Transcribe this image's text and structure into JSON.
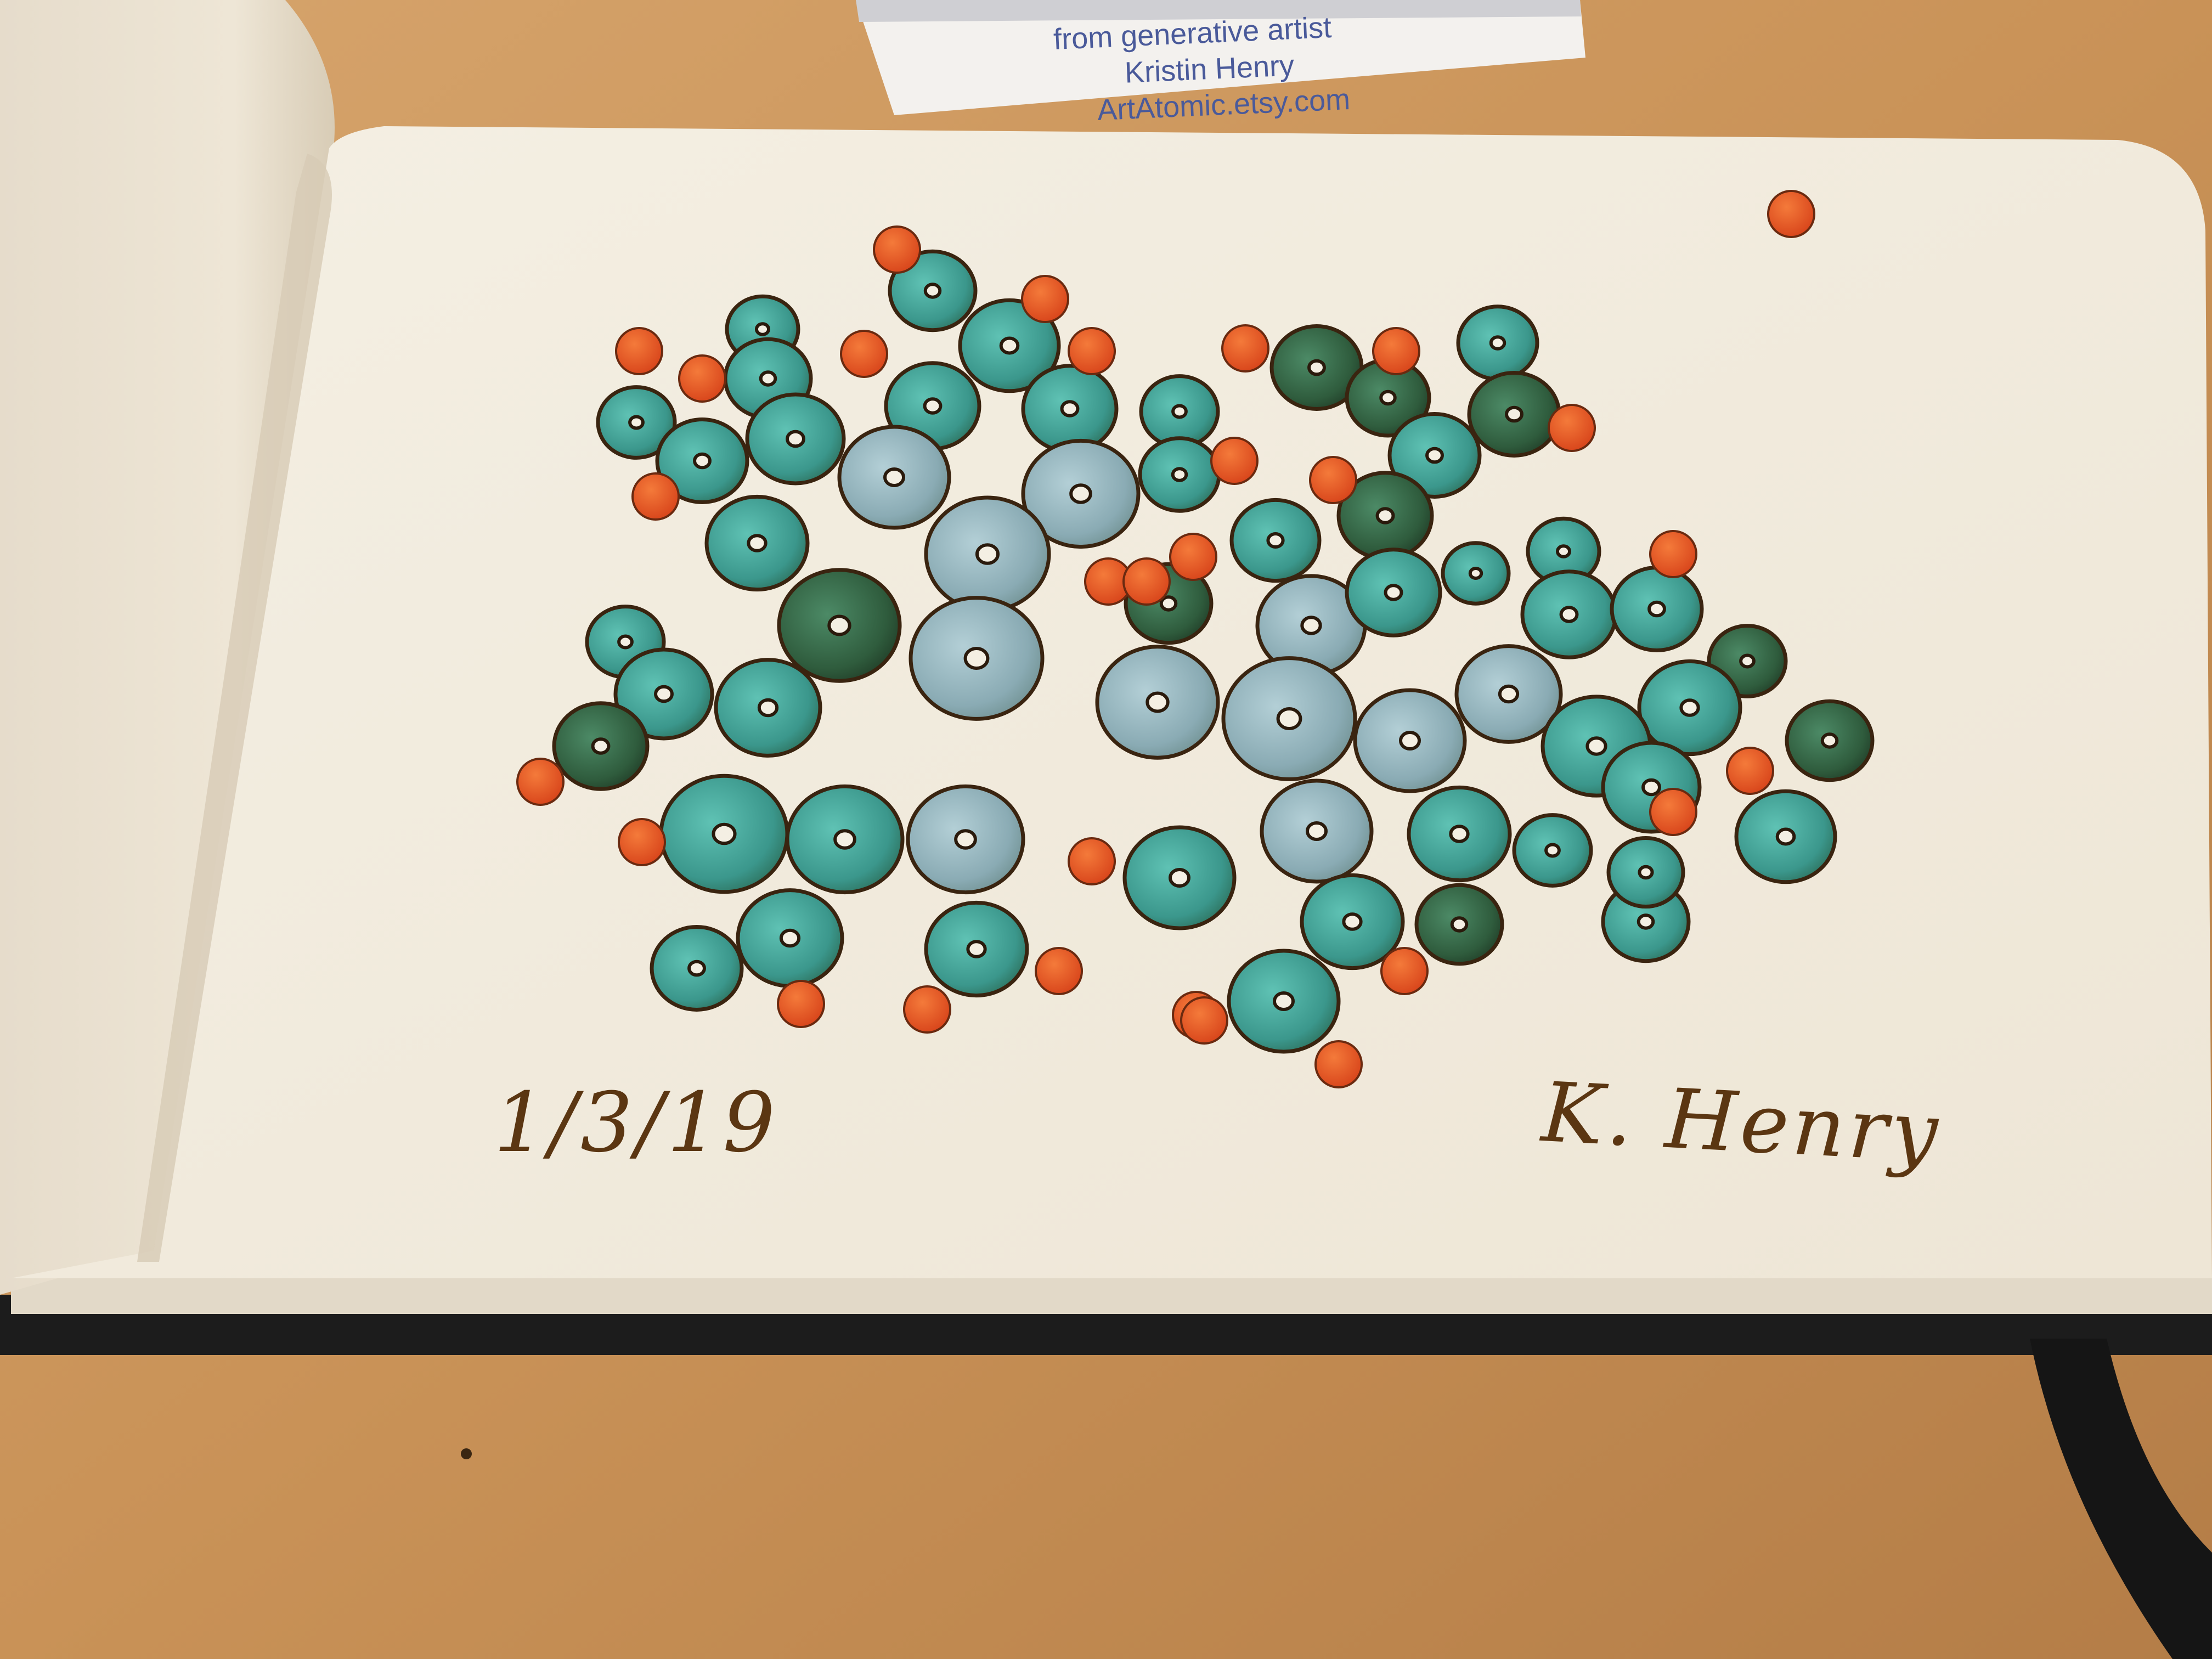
{
  "card": {
    "line1": "from generative artist",
    "line2": "Kristin Henry",
    "line3": "ArtAtomic.etsy.com"
  },
  "page": {
    "date": "1/3/19",
    "signature": "K. Henry"
  },
  "colors": {
    "table": "#c9955c",
    "paper": "#f2ecdf",
    "teal": "#3e9c92",
    "blue_grey": "#8fb0b8",
    "dark_green": "#2f5a3a",
    "orange": "#e5531c",
    "ink": "#4a2a12",
    "binding": "#1c1c1c"
  }
}
